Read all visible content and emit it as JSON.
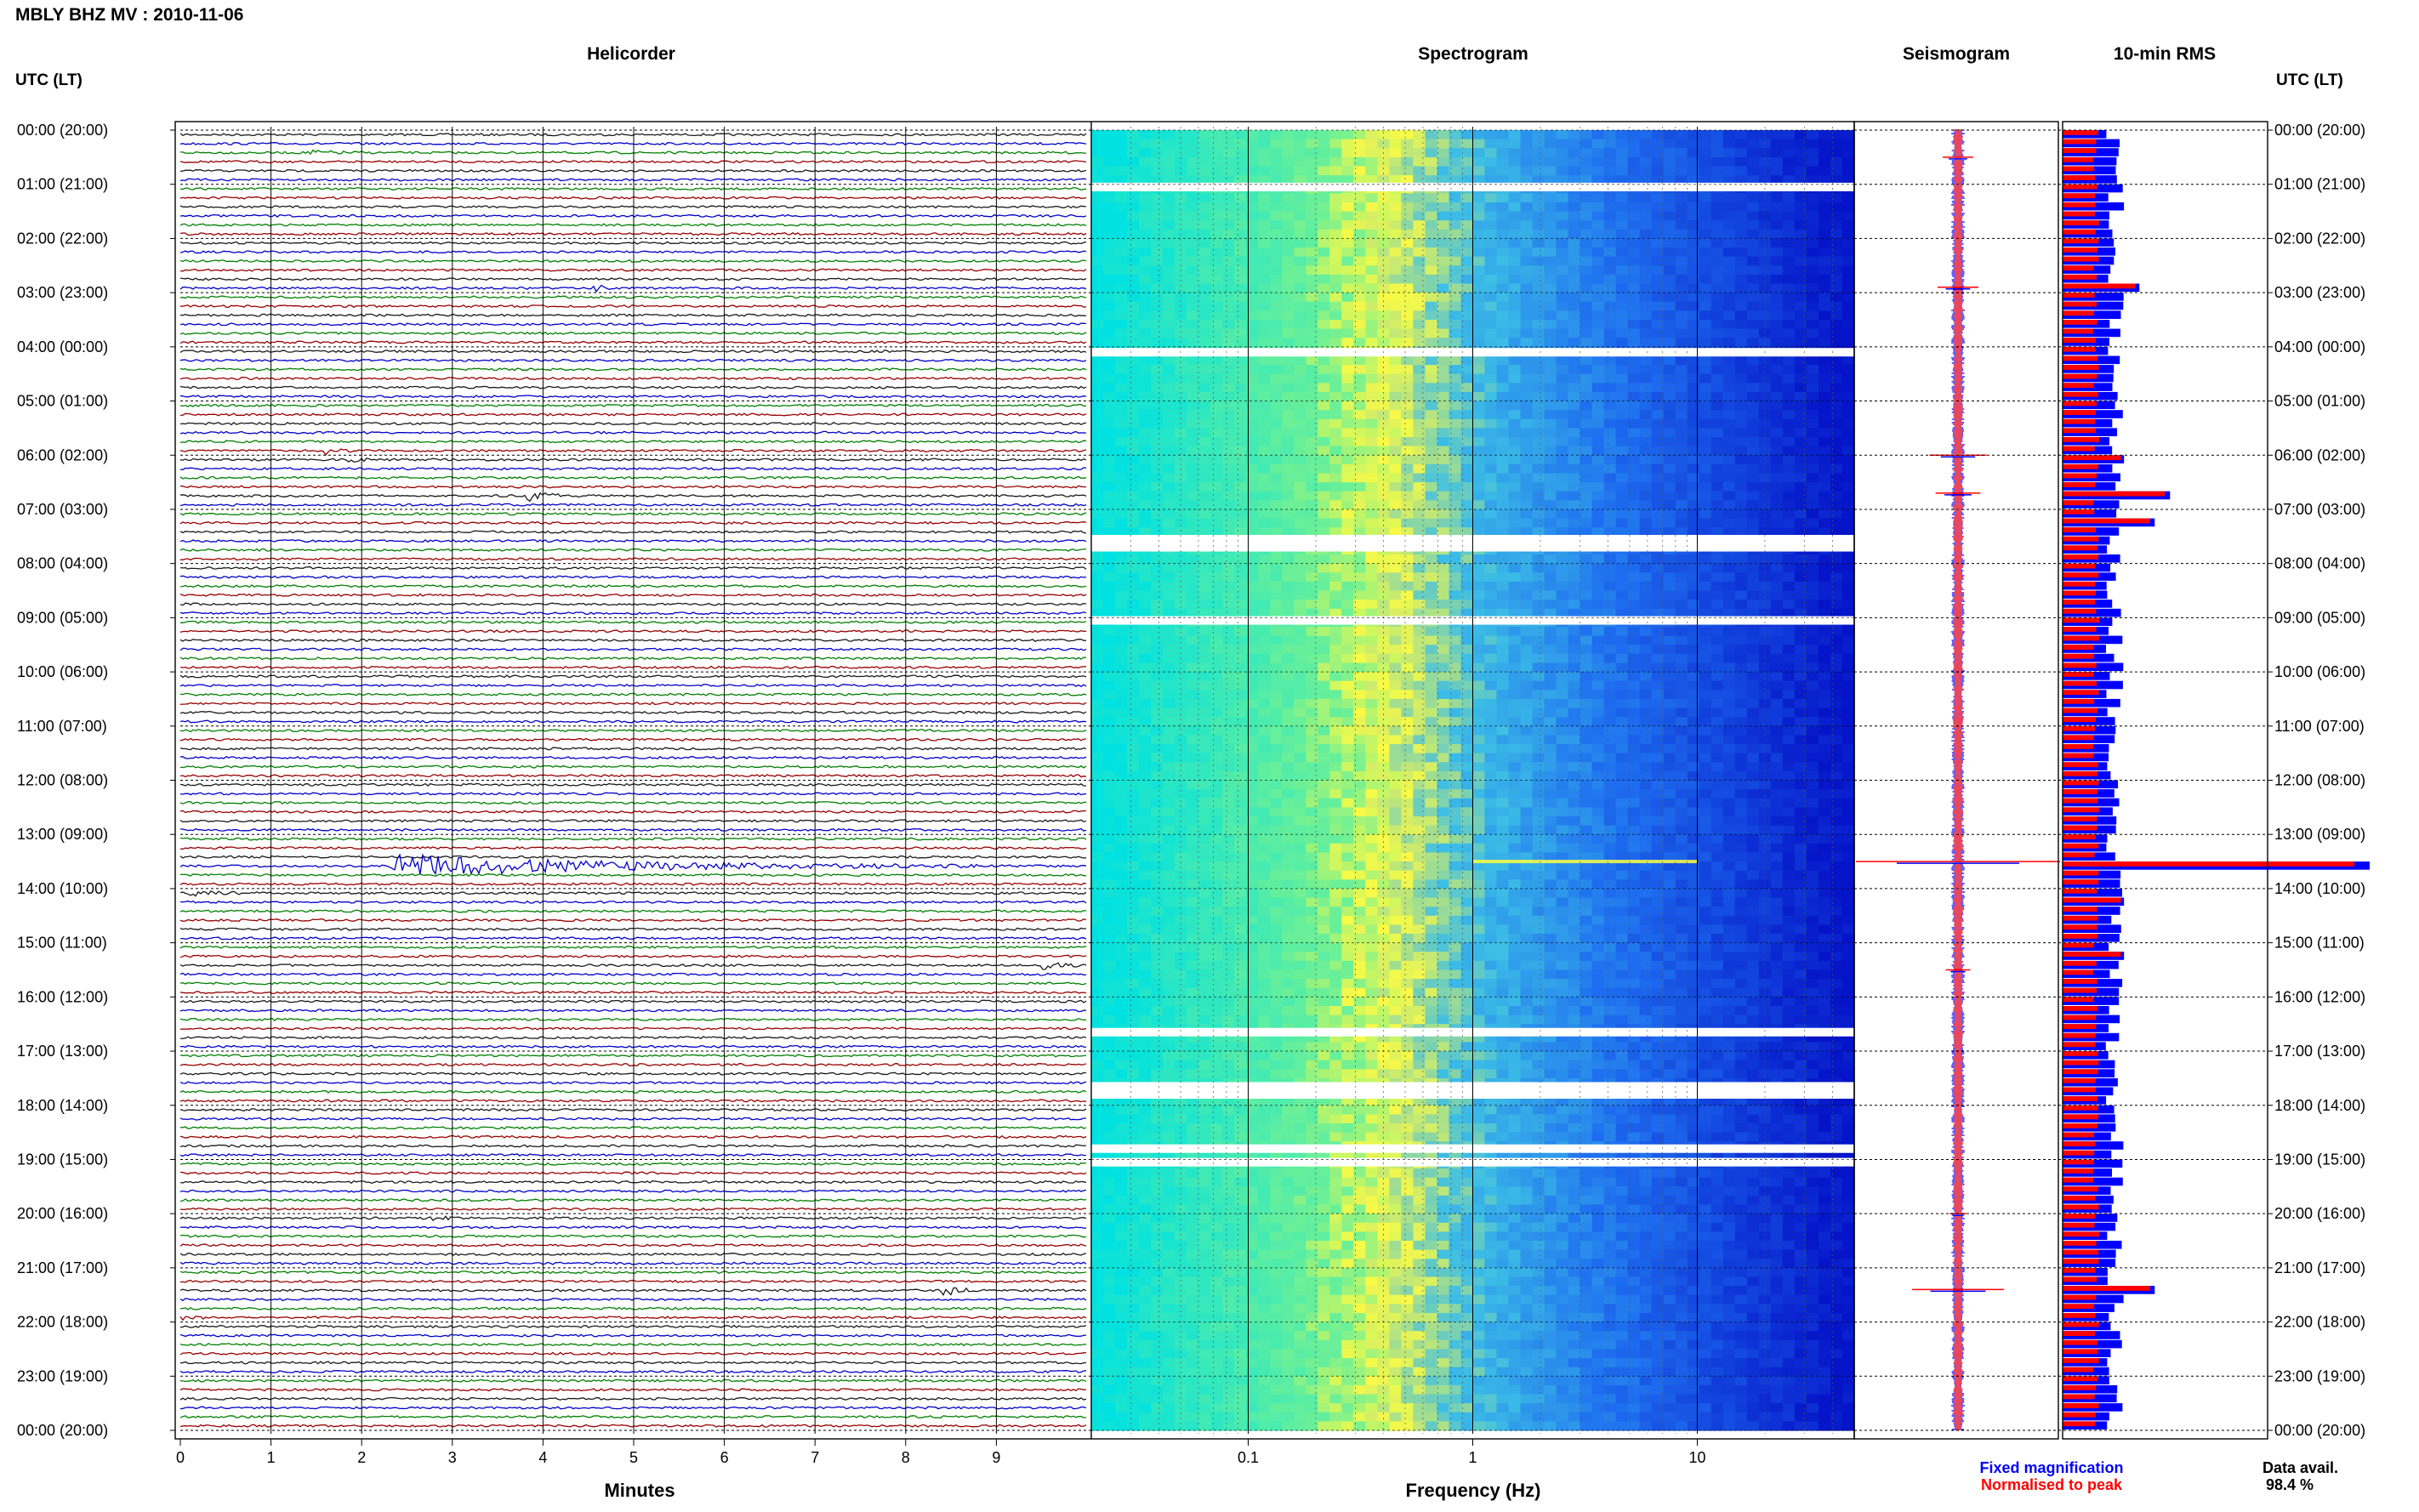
{
  "header": {
    "station": "MBLY BHZ MV",
    "date": "2010-11-06",
    "separator": " : "
  },
  "colors": {
    "trace_cycle": [
      "#1a1a1a",
      "#0000cc",
      "#008000",
      "#990000"
    ],
    "spectrogram_low": "#00e0e0",
    "spectrogram_mid": "#ffff40",
    "spectrogram_high": "#0000c8",
    "fixed": "#0000ff",
    "normalised": "#ff0000"
  },
  "chart_data": [
    {
      "type": "line",
      "panel": "helicorder",
      "title": "Helicorder",
      "xlabel": "Minutes",
      "xlim": [
        0,
        10
      ],
      "x_ticks": [
        "0",
        "1",
        "2",
        "3",
        "4",
        "5",
        "6",
        "7",
        "8",
        "9"
      ],
      "y_axis_title": "UTC (LT)",
      "y_ticks": [
        "00:00 (20:00)",
        "01:00 (21:00)",
        "02:00 (22:00)",
        "03:00 (23:00)",
        "04:00 (00:00)",
        "05:00 (01:00)",
        "06:00 (02:00)",
        "07:00 (03:00)",
        "08:00 (04:00)",
        "09:00 (05:00)",
        "10:00 (06:00)",
        "11:00 (07:00)",
        "12:00 (08:00)",
        "13:00 (09:00)",
        "14:00 (10:00)",
        "15:00 (11:00)",
        "16:00 (12:00)",
        "17:00 (13:00)",
        "18:00 (14:00)",
        "19:00 (15:00)",
        "20:00 (16:00)",
        "21:00 (17:00)",
        "22:00 (18:00)",
        "23:00 (19:00)",
        "00:00 (20:00)"
      ],
      "lines_per_hour": 6,
      "events": [
        {
          "hour": 0.33,
          "minute": 1.4,
          "duration": 0.6,
          "amp": 3,
          "color_index": 2
        },
        {
          "hour": 2.8,
          "minute": 4.55,
          "duration": 0.35,
          "amp": 4,
          "color_index": 3
        },
        {
          "hour": 5.8,
          "minute": 1.6,
          "duration": 0.3,
          "amp": 4,
          "color_index": 2
        },
        {
          "hour": 6.05,
          "minute": 1.75,
          "duration": 0.35,
          "amp": 5,
          "color_index": 3
        },
        {
          "hour": 6.6,
          "minute": 3.8,
          "duration": 0.7,
          "amp": 6,
          "color_index": 0
        },
        {
          "hour": 13.5,
          "minute": 2.3,
          "duration": 6.5,
          "amp": 14,
          "color_index": 1
        },
        {
          "hour": 14.0,
          "minute": 0.1,
          "duration": 0.8,
          "amp": 3,
          "color_index": 3
        },
        {
          "hour": 15.3,
          "minute": 9.5,
          "duration": 0.5,
          "amp": 5,
          "color_index": 0
        },
        {
          "hour": 19.95,
          "minute": 2.75,
          "duration": 0.4,
          "amp": 3,
          "color_index": 0
        },
        {
          "hour": 21.3,
          "minute": 8.4,
          "duration": 0.5,
          "amp": 7,
          "color_index": 0
        },
        {
          "hour": 21.8,
          "minute": 0.0,
          "duration": 0.3,
          "amp": 4,
          "color_index": 0
        }
      ]
    },
    {
      "type": "heatmap",
      "panel": "spectrogram",
      "title": "Spectrogram",
      "xlabel": "Frequency (Hz)",
      "x_scale": "log",
      "xlim": [
        0.02,
        50
      ],
      "x_ticks": [
        0.1,
        1,
        10
      ],
      "x_tick_labels": [
        "0.1",
        "1",
        "10"
      ],
      "ylim": [
        0,
        24
      ],
      "gaps_hours": [
        1.05,
        4.1,
        7.55,
        7.7,
        9.05,
        16.65,
        17.65,
        17.8,
        18.8,
        19.05
      ],
      "event_band": {
        "hour": 13.5,
        "freq_range": [
          1,
          10
        ]
      }
    },
    {
      "type": "line",
      "panel": "seismogram",
      "title": "Seismogram",
      "series": [
        {
          "name": "Fixed magnification",
          "color": "#0000ff"
        },
        {
          "name": "Normalised to peak",
          "color": "#ff0000"
        }
      ],
      "spikes": [
        {
          "hour": 0.5,
          "size": 0.15
        },
        {
          "hour": 2.9,
          "size": 0.2
        },
        {
          "hour": 6.0,
          "size": 0.28
        },
        {
          "hour": 6.7,
          "size": 0.22
        },
        {
          "hour": 13.5,
          "size": 1.0
        },
        {
          "hour": 15.5,
          "size": 0.12
        },
        {
          "hour": 20.0,
          "size": 0.08
        },
        {
          "hour": 21.4,
          "size": 0.45
        }
      ]
    },
    {
      "type": "bar",
      "panel": "rms",
      "title": "10-min RMS",
      "orientation": "horizontal",
      "bins_per_hour": 6,
      "spikes": [
        {
          "hour": 2.9,
          "value": 0.25
        },
        {
          "hour": 6.0,
          "value": 0.2
        },
        {
          "hour": 6.65,
          "value": 0.35
        },
        {
          "hour": 7.2,
          "value": 0.3
        },
        {
          "hour": 13.5,
          "value": 1.0
        },
        {
          "hour": 14.1,
          "value": 0.2
        },
        {
          "hour": 15.1,
          "value": 0.2
        },
        {
          "hour": 21.3,
          "value": 0.3
        }
      ]
    }
  ],
  "footer": {
    "legend_fixed": "Fixed magnification",
    "legend_normalised": "Normalised to peak",
    "data_avail_label": "Data avail.",
    "data_avail_value": "98.4 %"
  }
}
